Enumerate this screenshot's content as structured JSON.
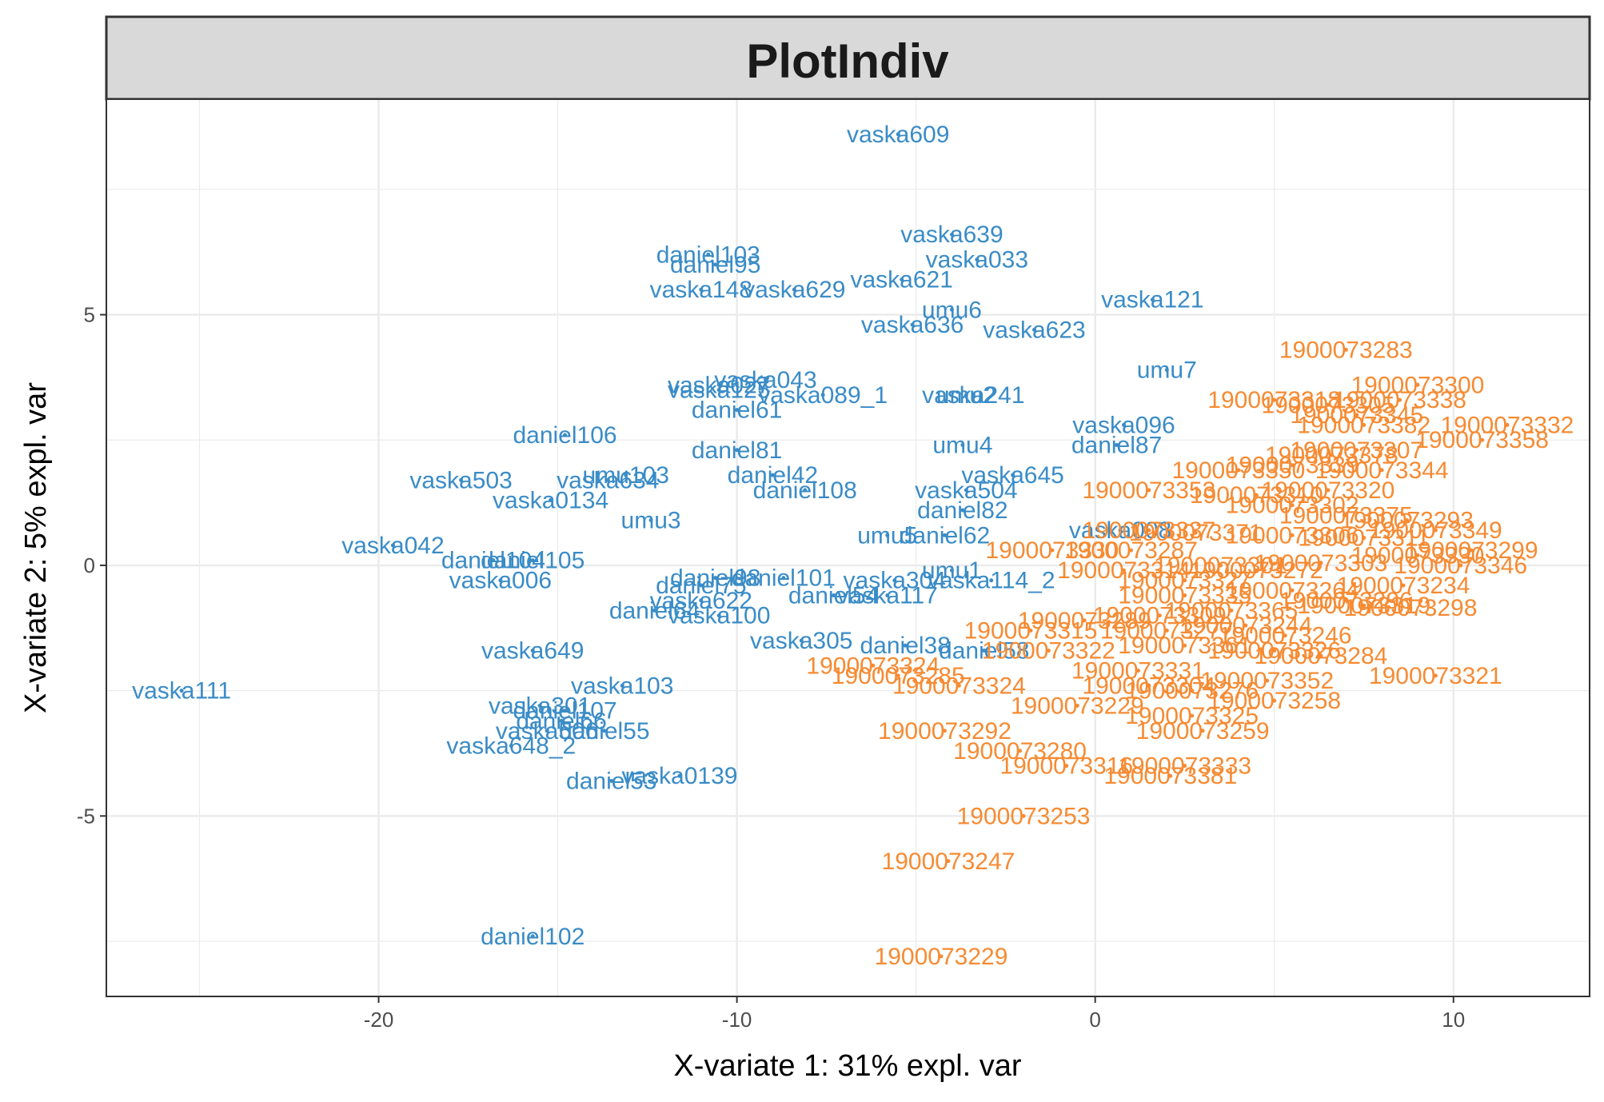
{
  "chart_data": {
    "type": "scatter",
    "title": "PlotIndiv",
    "xlabel": "X-variate 1: 31% expl. var",
    "ylabel": "X-variate 2: 5% expl. var",
    "xlim": [
      -27.6,
      13.8
    ],
    "ylim": [
      -8.6,
      9.3
    ],
    "xticks": [
      -20,
      -10,
      0,
      10
    ],
    "yticks": [
      -5,
      0,
      5
    ],
    "grid": true,
    "legend": "none",
    "colors": {
      "group_blue": "#3a8cc7",
      "group_orange": "#f68b33",
      "strip_fill": "#d9d9d9",
      "grid": "#ebebeb",
      "frame": "#333333"
    },
    "series": [
      {
        "color": "#3a8cc7",
        "points": [
          {
            "label": "vaska609",
            "x": -5.5,
            "y": 8.6
          },
          {
            "label": "vaska639",
            "x": -4.0,
            "y": 6.6
          },
          {
            "label": "vaska033",
            "x": -3.3,
            "y": 6.1
          },
          {
            "label": "daniel103",
            "x": -10.8,
            "y": 6.2
          },
          {
            "label": "daniel95",
            "x": -10.6,
            "y": 6.0
          },
          {
            "label": "vaska621",
            "x": -5.4,
            "y": 5.7
          },
          {
            "label": "vaska148",
            "x": -11.0,
            "y": 5.5
          },
          {
            "label": "vaska629",
            "x": -8.4,
            "y": 5.5
          },
          {
            "label": "vaska121",
            "x": 1.6,
            "y": 5.3
          },
          {
            "label": "umu6",
            "x": -4.0,
            "y": 5.1
          },
          {
            "label": "vaska636",
            "x": -5.1,
            "y": 4.8
          },
          {
            "label": "vaska623",
            "x": -1.7,
            "y": 4.7
          },
          {
            "label": "umu7",
            "x": 2.0,
            "y": 3.9
          },
          {
            "label": "vaska043",
            "x": -9.2,
            "y": 3.7
          },
          {
            "label": "vaska027",
            "x": -10.5,
            "y": 3.6
          },
          {
            "label": "vaska125",
            "x": -10.5,
            "y": 3.5
          },
          {
            "label": "vaska089_1",
            "x": -7.6,
            "y": 3.4
          },
          {
            "label": "umu2",
            "x": -3.6,
            "y": 3.4
          },
          {
            "label": "vaska241",
            "x": -3.4,
            "y": 3.4
          },
          {
            "label": "daniel61",
            "x": -10.0,
            "y": 3.1
          },
          {
            "label": "vaska096",
            "x": 0.8,
            "y": 2.8
          },
          {
            "label": "daniel106",
            "x": -14.8,
            "y": 2.6
          },
          {
            "label": "daniel81",
            "x": -10.0,
            "y": 2.3
          },
          {
            "label": "umu4",
            "x": -3.7,
            "y": 2.4
          },
          {
            "label": "daniel87",
            "x": 0.6,
            "y": 2.4
          },
          {
            "label": "daniel42",
            "x": -9.0,
            "y": 1.8
          },
          {
            "label": "vaska645",
            "x": -2.3,
            "y": 1.8
          },
          {
            "label": "umu103",
            "x": -13.1,
            "y": 1.8
          },
          {
            "label": "vaska503",
            "x": -17.7,
            "y": 1.7
          },
          {
            "label": "vaska634",
            "x": -13.6,
            "y": 1.7
          },
          {
            "label": "daniel108",
            "x": -8.1,
            "y": 1.5
          },
          {
            "label": "vaska504",
            "x": -3.6,
            "y": 1.5
          },
          {
            "label": "vaska0134",
            "x": -15.2,
            "y": 1.3
          },
          {
            "label": "daniel82",
            "x": -3.7,
            "y": 1.1
          },
          {
            "label": "umu3",
            "x": -12.4,
            "y": 0.9
          },
          {
            "label": "vaska008",
            "x": 0.7,
            "y": 0.7
          },
          {
            "label": "umu5",
            "x": -5.8,
            "y": 0.6
          },
          {
            "label": "daniel62",
            "x": -4.2,
            "y": 0.6
          },
          {
            "label": "vaska042",
            "x": -19.6,
            "y": 0.4
          },
          {
            "label": "daniel104",
            "x": -16.8,
            "y": 0.1
          },
          {
            "label": "daniel105",
            "x": -15.7,
            "y": 0.1
          },
          {
            "label": "vaska006",
            "x": -16.6,
            "y": -0.3
          },
          {
            "label": "umu1",
            "x": -4.0,
            "y": -0.1
          },
          {
            "label": "daniel101",
            "x": -8.7,
            "y": -0.25
          },
          {
            "label": "daniel98",
            "x": -10.6,
            "y": -0.25
          },
          {
            "label": "vaska304",
            "x": -5.6,
            "y": -0.3
          },
          {
            "label": "vaska114_2",
            "x": -2.9,
            "y": -0.3
          },
          {
            "label": "daniel75",
            "x": -11.0,
            "y": -0.4
          },
          {
            "label": "daniel54",
            "x": -7.3,
            "y": -0.6
          },
          {
            "label": "vaska117",
            "x": -5.8,
            "y": -0.6
          },
          {
            "label": "vaska622",
            "x": -11.0,
            "y": -0.7
          },
          {
            "label": "daniel64",
            "x": -12.3,
            "y": -0.9
          },
          {
            "label": "vaska100",
            "x": -10.5,
            "y": -1.0
          },
          {
            "label": "vaska305",
            "x": -8.2,
            "y": -1.5
          },
          {
            "label": "daniel38",
            "x": -5.3,
            "y": -1.6
          },
          {
            "label": "daniel58",
            "x": -3.1,
            "y": -1.7
          },
          {
            "label": "vaska649",
            "x": -15.7,
            "y": -1.7
          },
          {
            "label": "vaska111",
            "x": -25.5,
            "y": -2.5
          },
          {
            "label": "vaska103",
            "x": -13.2,
            "y": -2.4
          },
          {
            "label": "vaska301",
            "x": -15.5,
            "y": -2.8
          },
          {
            "label": "daniel107",
            "x": -14.8,
            "y": -2.9
          },
          {
            "label": "daniel66",
            "x": -14.9,
            "y": -3.1
          },
          {
            "label": "vaska506",
            "x": -15.3,
            "y": -3.3
          },
          {
            "label": "daniel55",
            "x": -13.7,
            "y": -3.3
          },
          {
            "label": "vaska648_2",
            "x": -16.3,
            "y": -3.6
          },
          {
            "label": "vaska0139",
            "x": -11.6,
            "y": -4.2
          },
          {
            "label": "daniel53",
            "x": -13.5,
            "y": -4.3
          },
          {
            "label": "daniel102",
            "x": -15.7,
            "y": -7.4
          }
        ]
      },
      {
        "color": "#f68b33",
        "points": [
          {
            "label": "1900073283",
            "x": 7.0,
            "y": 4.3
          },
          {
            "label": "1900073300",
            "x": 9.0,
            "y": 3.6
          },
          {
            "label": "1900073318",
            "x": 5.0,
            "y": 3.3
          },
          {
            "label": "1900073338",
            "x": 8.5,
            "y": 3.3
          },
          {
            "label": "1900073305",
            "x": 6.5,
            "y": 3.2
          },
          {
            "label": "1900073345",
            "x": 7.3,
            "y": 3.0
          },
          {
            "label": "1900073332",
            "x": 11.5,
            "y": 2.8
          },
          {
            "label": "1900073382",
            "x": 7.5,
            "y": 2.8
          },
          {
            "label": "1900073358",
            "x": 10.8,
            "y": 2.5
          },
          {
            "label": "1900073307",
            "x": 7.3,
            "y": 2.3
          },
          {
            "label": "1900073378",
            "x": 6.6,
            "y": 2.2
          },
          {
            "label": "1900073339",
            "x": 5.5,
            "y": 2.0
          },
          {
            "label": "1900073344",
            "x": 8.0,
            "y": 1.9
          },
          {
            "label": "1900073350",
            "x": 4.0,
            "y": 1.9
          },
          {
            "label": "1900073320",
            "x": 6.5,
            "y": 1.5
          },
          {
            "label": "1900073353",
            "x": 1.5,
            "y": 1.5
          },
          {
            "label": "1900073310",
            "x": 4.5,
            "y": 1.4
          },
          {
            "label": "1900073302",
            "x": 5.5,
            "y": 1.2
          },
          {
            "label": "1900073375",
            "x": 7.0,
            "y": 1.0
          },
          {
            "label": "1900073293",
            "x": 8.7,
            "y": 0.9
          },
          {
            "label": "1900073349",
            "x": 9.5,
            "y": 0.7
          },
          {
            "label": "1900073337",
            "x": 1.5,
            "y": 0.7
          },
          {
            "label": "1900073371",
            "x": 2.8,
            "y": 0.65
          },
          {
            "label": "1900073306",
            "x": 5.5,
            "y": 0.6
          },
          {
            "label": "1900073311",
            "x": 7.5,
            "y": 0.55
          },
          {
            "label": "1900073330",
            "x": -1.2,
            "y": 0.3
          },
          {
            "label": "1900073287",
            "x": 1.0,
            "y": 0.3
          },
          {
            "label": "1900073299",
            "x": 10.5,
            "y": 0.3
          },
          {
            "label": "1900073330",
            "x": 9.0,
            "y": 0.2
          },
          {
            "label": "1900073346",
            "x": 10.2,
            "y": 0.0
          },
          {
            "label": "1900073301",
            "x": 3.5,
            "y": 0.0
          },
          {
            "label": "1900073314",
            "x": 0.8,
            "y": -0.1
          },
          {
            "label": "1900073303",
            "x": 6.3,
            "y": 0.05
          },
          {
            "label": "1900073272",
            "x": 4.5,
            "y": -0.1
          },
          {
            "label": "1900073327",
            "x": 2.5,
            "y": -0.3
          },
          {
            "label": "1900073234",
            "x": 8.6,
            "y": -0.4
          },
          {
            "label": "1900073264",
            "x": 5.5,
            "y": -0.5
          },
          {
            "label": "1900073335",
            "x": 2.5,
            "y": -0.6
          },
          {
            "label": "1900073296",
            "x": 7.0,
            "y": -0.7
          },
          {
            "label": "1900073319",
            "x": 7.5,
            "y": -0.8
          },
          {
            "label": "1900073298",
            "x": 8.8,
            "y": -0.85
          },
          {
            "label": "1900073365",
            "x": 3.8,
            "y": -0.9
          },
          {
            "label": "1900073309",
            "x": 1.8,
            "y": -1.0
          },
          {
            "label": "1900073289",
            "x": -0.3,
            "y": -1.1
          },
          {
            "label": "1900073244",
            "x": 4.2,
            "y": -1.2
          },
          {
            "label": "1900073277",
            "x": 2.0,
            "y": -1.3
          },
          {
            "label": "1900073315",
            "x": -1.8,
            "y": -1.3
          },
          {
            "label": "1900073246",
            "x": 5.3,
            "y": -1.4
          },
          {
            "label": "1900073361",
            "x": 2.5,
            "y": -1.6
          },
          {
            "label": "1900073322",
            "x": -1.3,
            "y": -1.7
          },
          {
            "label": "1900073326",
            "x": 5.0,
            "y": -1.7
          },
          {
            "label": "1900073284",
            "x": 6.3,
            "y": -1.8
          },
          {
            "label": "1900073324",
            "x": -6.2,
            "y": -2.0
          },
          {
            "label": "1900073331",
            "x": 1.2,
            "y": -2.1
          },
          {
            "label": "1900073285",
            "x": -5.5,
            "y": -2.2
          },
          {
            "label": "1900073321",
            "x": 9.5,
            "y": -2.2
          },
          {
            "label": "1900073352",
            "x": 4.8,
            "y": -2.3
          },
          {
            "label": "1900073324",
            "x": -3.8,
            "y": -2.4
          },
          {
            "label": "1900073304",
            "x": 1.5,
            "y": -2.4
          },
          {
            "label": "1900073276",
            "x": 2.7,
            "y": -2.5
          },
          {
            "label": "1900073258",
            "x": 5.0,
            "y": -2.7
          },
          {
            "label": "1900073229",
            "x": -0.5,
            "y": -2.8
          },
          {
            "label": "1900073325",
            "x": 2.7,
            "y": -3.0
          },
          {
            "label": "1900073292",
            "x": -4.2,
            "y": -3.3
          },
          {
            "label": "1900073259",
            "x": 3.0,
            "y": -3.3
          },
          {
            "label": "1900073280",
            "x": -2.1,
            "y": -3.7
          },
          {
            "label": "1900073316",
            "x": -0.8,
            "y": -4.0
          },
          {
            "label": "1900073333",
            "x": 2.5,
            "y": -4.0
          },
          {
            "label": "1900073381",
            "x": 2.1,
            "y": -4.2
          },
          {
            "label": "1900073253",
            "x": -2.0,
            "y": -5.0
          },
          {
            "label": "1900073247",
            "x": -4.1,
            "y": -5.9
          },
          {
            "label": "1900073229",
            "x": -4.3,
            "y": -7.8
          }
        ]
      }
    ]
  }
}
